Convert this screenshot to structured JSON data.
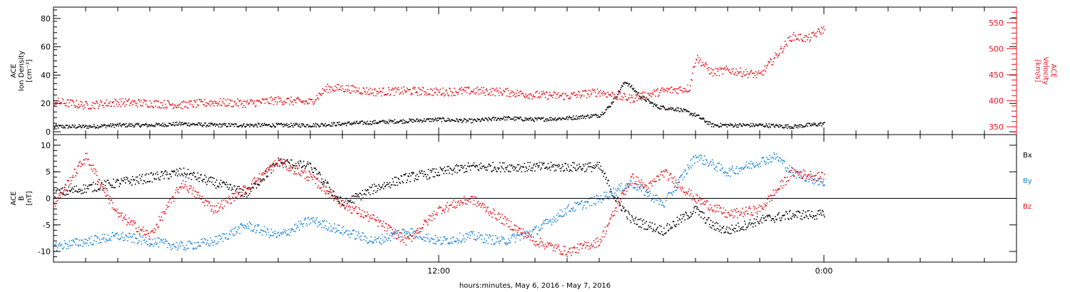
{
  "colors": {
    "black": "#000000",
    "red": "#e8141c",
    "blue": "#1c86d8"
  },
  "xlabel": "hours:minutes, May  6, 2016 - May  7, 2016",
  "x_tick_labels": [
    {
      "label": "12:00",
      "hour": 12
    },
    {
      "label": "0:00",
      "hour": 24
    }
  ],
  "chart_data": [
    {
      "type": "scatter",
      "panel": "top",
      "xlim_hours": [
        0,
        30
      ],
      "left_axis": {
        "title_lines": [
          "ACE",
          "Ion Density",
          "[cm⁻³]"
        ],
        "ylim": [
          -2,
          88
        ],
        "ticks": [
          0,
          20,
          40,
          60,
          80
        ]
      },
      "right_axis": {
        "title_lines": [
          "ACE",
          "Velocity",
          "[km/s]"
        ],
        "ylim": [
          335,
          580
        ],
        "ticks": [
          350,
          400,
          450,
          500,
          550
        ]
      },
      "series": [
        {
          "axis": "left",
          "color": "black",
          "x": [
            0,
            1,
            2,
            3,
            4,
            5,
            6,
            7,
            8,
            9,
            10,
            11,
            12,
            13,
            14,
            15,
            16,
            17,
            17.3,
            17.8,
            18.3,
            18.8,
            19.5,
            20,
            20.5,
            21,
            22,
            23,
            24
          ],
          "y": [
            4,
            4,
            5,
            5,
            6,
            5,
            5,
            5,
            5,
            6,
            7,
            8,
            9,
            8,
            10,
            9,
            10,
            12,
            18,
            36,
            25,
            18,
            16,
            12,
            5,
            5,
            5,
            4,
            6
          ]
        },
        {
          "axis": "right",
          "color": "red",
          "x": [
            0,
            1,
            2,
            3,
            4,
            5,
            6,
            7,
            8,
            8.5,
            9,
            10,
            11,
            12,
            13,
            14,
            15,
            16,
            17,
            17.5,
            18,
            19,
            19.8,
            20,
            20.5,
            21,
            22,
            23,
            23.5,
            24
          ],
          "y": [
            400,
            392,
            398,
            396,
            393,
            398,
            396,
            402,
            398,
            425,
            425,
            418,
            420,
            418,
            420,
            418,
            412,
            410,
            418,
            410,
            405,
            420,
            425,
            485,
            455,
            460,
            450,
            525,
            520,
            540
          ]
        }
      ]
    },
    {
      "type": "scatter",
      "panel": "bottom",
      "xlim_hours": [
        0,
        30
      ],
      "left_axis": {
        "title_lines": [
          "ACE",
          "B",
          "[nT]"
        ],
        "ylim": [
          -12,
          12
        ],
        "ticks": [
          -10,
          -5,
          0,
          5,
          10
        ]
      },
      "zero_line": 0,
      "legend_position": "right",
      "series": [
        {
          "name": "Bx",
          "color": "black",
          "x": [
            0,
            1,
            2,
            3,
            4,
            5,
            6,
            7,
            8,
            9,
            10,
            11,
            12,
            13,
            14,
            15,
            16,
            17,
            17.5,
            18,
            19,
            20,
            20.5,
            21,
            22,
            23,
            24
          ],
          "y": [
            1,
            2,
            3,
            4,
            5,
            3,
            1,
            7,
            6,
            -1,
            2,
            4,
            5,
            6,
            6,
            6,
            6,
            6,
            0,
            -4,
            -6,
            -2,
            -5,
            -6,
            -4,
            -3,
            -3
          ]
        },
        {
          "name": "By",
          "color": "blue",
          "x": [
            0,
            1,
            2,
            3,
            4,
            5,
            6,
            7,
            8,
            9,
            10,
            11,
            12,
            13,
            14,
            15,
            16,
            17,
            18,
            19,
            20,
            21,
            22,
            22.5,
            23,
            24
          ],
          "y": [
            -9,
            -8,
            -7,
            -8,
            -9,
            -8,
            -5,
            -7,
            -4,
            -6,
            -8,
            -6,
            -8,
            -7,
            -8,
            -6,
            -2,
            0,
            3,
            -1,
            8,
            5,
            7,
            8,
            5,
            3
          ]
        },
        {
          "name": "Bz",
          "color": "red",
          "x": [
            0,
            1,
            2,
            3,
            4,
            5,
            6,
            7,
            8,
            9,
            10,
            11,
            12,
            13,
            14,
            15,
            16,
            17,
            18,
            18.5,
            19,
            20,
            21,
            22,
            23,
            24
          ],
          "y": [
            -1,
            8,
            -3,
            -7,
            3,
            -2,
            2,
            7,
            4,
            -1,
            -4,
            -8,
            -2,
            0,
            -4,
            -8,
            -10,
            -8,
            4,
            2,
            5,
            0,
            -3,
            -2,
            5,
            4
          ]
        }
      ]
    }
  ]
}
